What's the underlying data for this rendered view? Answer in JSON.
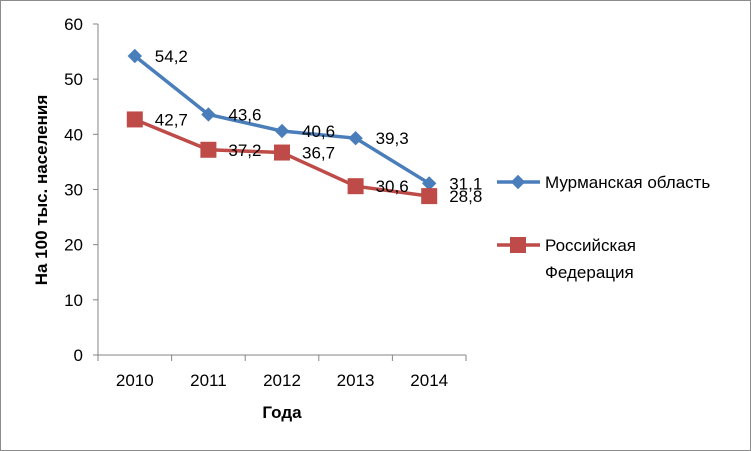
{
  "chart_data": {
    "type": "line",
    "title": "",
    "xlabel": "Года",
    "ylabel": "На 100 тыс. населения",
    "categories": [
      "2010",
      "2011",
      "2012",
      "2013",
      "2014"
    ],
    "ylim": [
      0,
      60
    ],
    "yticks": [
      0,
      10,
      20,
      30,
      40,
      50,
      60
    ],
    "grid": false,
    "legend": "right",
    "series": [
      {
        "name": "Мурманская область",
        "values": [
          54.2,
          43.6,
          40.6,
          39.3,
          31.1
        ],
        "labels": [
          "54,2",
          "43,6",
          "40,6",
          "39,3",
          "31,1"
        ],
        "color": "#4a7ebb",
        "marker": "diamond"
      },
      {
        "name": "Российская Федерация",
        "legend_lines": [
          "Российская",
          "Федерация"
        ],
        "values": [
          42.7,
          37.2,
          36.7,
          30.6,
          28.8
        ],
        "labels": [
          "42,7",
          "37,2",
          "36,7",
          "30,6",
          "28,8"
        ],
        "color": "#be4b48",
        "marker": "square"
      }
    ]
  }
}
